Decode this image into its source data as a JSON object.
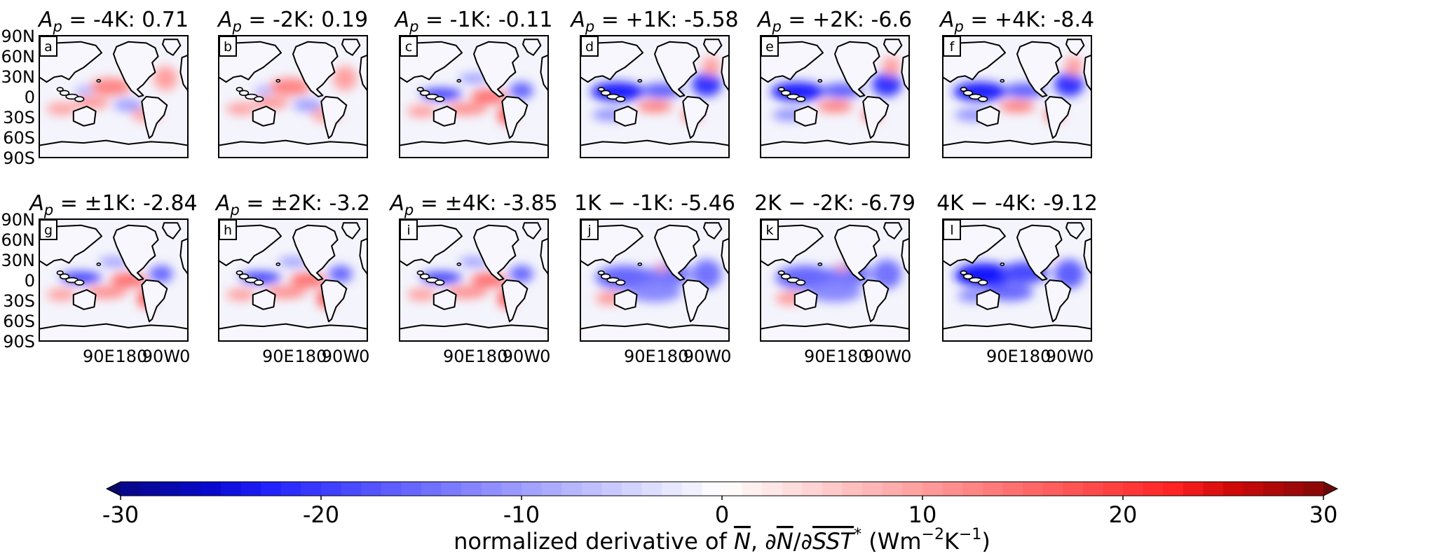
{
  "chart_data": {
    "type": "heatmap",
    "description_units": "Wm-2K-1",
    "panels": [
      {
        "letter": "a",
        "title": "A_p = -4K: 0.71",
        "title_main": "-4K: 0.71",
        "title_prefix": "A",
        "title_sub": "p",
        "pattern": "warm"
      },
      {
        "letter": "b",
        "title": "A_p = -2K: 0.19",
        "title_main": "-2K: 0.19",
        "title_prefix": "A",
        "title_sub": "p",
        "pattern": "warm"
      },
      {
        "letter": "c",
        "title": "A_p = -1K: -0.11",
        "title_main": "-1K: -0.11",
        "title_prefix": "A",
        "title_sub": "p",
        "pattern": "mixed"
      },
      {
        "letter": "d",
        "title": "A_p = +1K: -5.58",
        "title_main": "+1K: -5.58",
        "title_prefix": "A",
        "title_sub": "p",
        "pattern": "cool"
      },
      {
        "letter": "e",
        "title": "A_p = +2K: -6.6",
        "title_main": "+2K: -6.6",
        "title_prefix": "A",
        "title_sub": "p",
        "pattern": "cool"
      },
      {
        "letter": "f",
        "title": "A_p = +4K: -8.4",
        "title_main": "+4K: -8.4",
        "title_prefix": "A",
        "title_sub": "p",
        "pattern": "cool"
      },
      {
        "letter": "g",
        "title": "A_p = ±1K: -2.84",
        "title_main": "±1K: -2.84",
        "title_prefix": "A",
        "title_sub": "p",
        "pattern": "mixed"
      },
      {
        "letter": "h",
        "title": "A_p = ±2K: -3.2",
        "title_main": "±2K: -3.2",
        "title_prefix": "A",
        "title_sub": "p",
        "pattern": "mixed"
      },
      {
        "letter": "i",
        "title": "A_p = ±4K: -3.85",
        "title_main": "±4K: -3.85",
        "title_prefix": "A",
        "title_sub": "p",
        "pattern": "mixed"
      },
      {
        "letter": "j",
        "title": "1K − -1K: -5.46",
        "title_main": "1K − -1K: -5.46",
        "title_prefix": "",
        "title_sub": "",
        "pattern": "diff"
      },
      {
        "letter": "k",
        "title": "2K − -2K: -6.79",
        "title_main": "2K − -2K: -6.79",
        "title_prefix": "",
        "title_sub": "",
        "pattern": "diff"
      },
      {
        "letter": "l",
        "title": "4K − -4K: -9.12",
        "title_main": "4K − -4K: -9.12",
        "title_prefix": "",
        "title_sub": "",
        "pattern": "diffstrong"
      }
    ],
    "y_ticks": [
      "90N",
      "60N",
      "30N",
      "0",
      "30S",
      "60S",
      "90S"
    ],
    "x_ticks": [
      "90E",
      "180",
      "90W",
      "0"
    ],
    "colorbar": {
      "min": -30,
      "max": 30,
      "ticks": [
        "-30",
        "-20",
        "-10",
        "0",
        "10",
        "20",
        "30"
      ],
      "label": "normalized derivative of N, ∂N/∂SST* (Wm⁻²K⁻¹)",
      "label_pre": "normalized derivative of ",
      "label_N": "N",
      "label_mid": ", ∂",
      "label_N2": "N",
      "label_slash": "/∂",
      "label_sst": "SST",
      "label_star": "*",
      "label_units_pre": "  (Wm",
      "label_exp1": "−2",
      "label_units_mid": "K",
      "label_exp2": "−1",
      "label_units_post": ")",
      "colors": {
        "min": "#08086b",
        "neg": "#0000e6",
        "zero": "#ffffff",
        "pos": "#e60000",
        "max": "#6b0808"
      }
    }
  }
}
